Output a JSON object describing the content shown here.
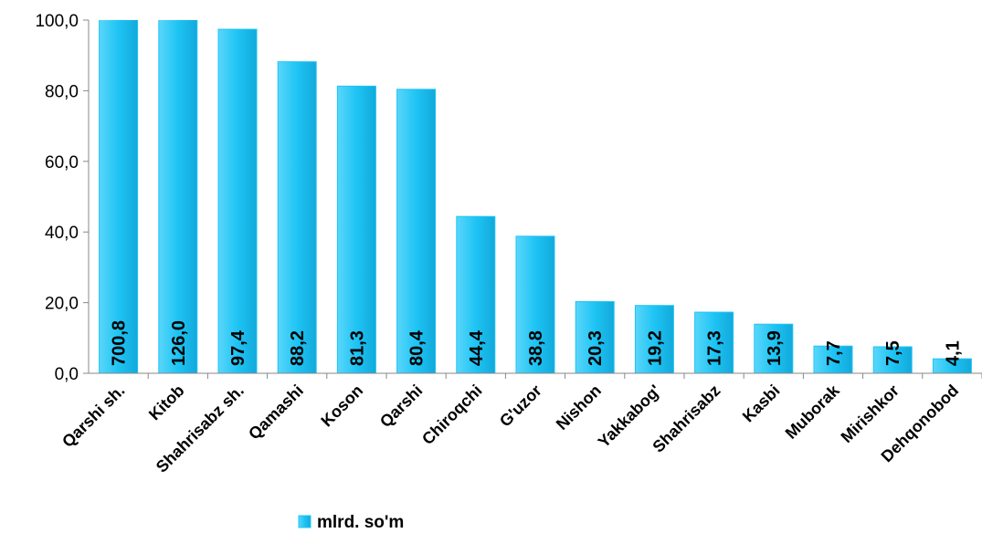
{
  "chart_data": {
    "type": "bar",
    "categories": [
      "Qarshi sh.",
      "Kitob",
      "Shahrisabz sh.",
      "Qamashi",
      "Koson",
      "Qarshi",
      "Chiroqchi",
      "G'uzor",
      "Nishon",
      "Yakkabog'",
      "Shahrisabz",
      "Kasbi",
      "Muborak",
      "Mirishkor",
      "Dehqonobod"
    ],
    "series": [
      {
        "name": "mlrd. so'm",
        "color": "#1ec4f4",
        "values": [
          700.8,
          126.0,
          97.4,
          88.2,
          81.3,
          80.4,
          44.4,
          38.8,
          20.3,
          19.2,
          17.3,
          13.9,
          7.7,
          7.5,
          4.1
        ],
        "value_labels": [
          "700,8",
          "126,0",
          "97,4",
          "88,2",
          "81,3",
          "80,4",
          "44,4",
          "38,8",
          "20,3",
          "19,2",
          "17,3",
          "13,9",
          "7,7",
          "7,5",
          "4,1"
        ]
      }
    ],
    "ylim": [
      0,
      100
    ],
    "yticks": [
      {
        "value": 0,
        "label": "0,0"
      },
      {
        "value": 20,
        "label": "20,0"
      },
      {
        "value": 40,
        "label": "40,0"
      },
      {
        "value": 60,
        "label": "60,0"
      },
      {
        "value": 80,
        "label": "80,0"
      },
      {
        "value": 100,
        "label": "100,0"
      }
    ],
    "legend": "bottom"
  }
}
